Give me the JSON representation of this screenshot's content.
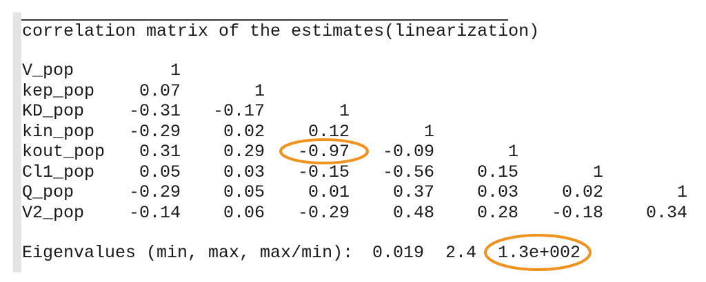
{
  "title": "correlation matrix of the estimates(linearization)",
  "matrix": {
    "rows": [
      {
        "label": "V_pop",
        "values": [
          "1"
        ]
      },
      {
        "label": "kep_pop",
        "values": [
          "0.07",
          "1"
        ]
      },
      {
        "label": "KD_pop",
        "values": [
          "-0.31",
          "-0.17",
          "1"
        ]
      },
      {
        "label": "kin_pop",
        "values": [
          "-0.29",
          "0.02",
          "0.12",
          "1"
        ]
      },
      {
        "label": "kout_pop",
        "values": [
          "0.31",
          "0.29",
          "-0.97",
          "-0.09",
          "1"
        ]
      },
      {
        "label": "Cl1_pop",
        "values": [
          "0.05",
          "0.03",
          "-0.15",
          "-0.56",
          "0.15",
          "1"
        ]
      },
      {
        "label": "Q_pop",
        "values": [
          "-0.29",
          "0.05",
          "0.01",
          "0.37",
          "0.03",
          "0.02",
          "1"
        ]
      },
      {
        "label": "V2_pop",
        "values": [
          "-0.14",
          "0.06",
          "-0.29",
          "0.48",
          "0.28",
          "-0.18",
          "0.34"
        ]
      }
    ]
  },
  "eigen": {
    "label": "Eigenvalues (min, max, max/min):",
    "min": "0.019",
    "max": "2.4",
    "ratio": "1.3e+002"
  },
  "highlight_color": "#f0921e",
  "highlights": [
    "kout_pop / KD_pop: -0.97",
    "max/min: 1.3e+002"
  ]
}
